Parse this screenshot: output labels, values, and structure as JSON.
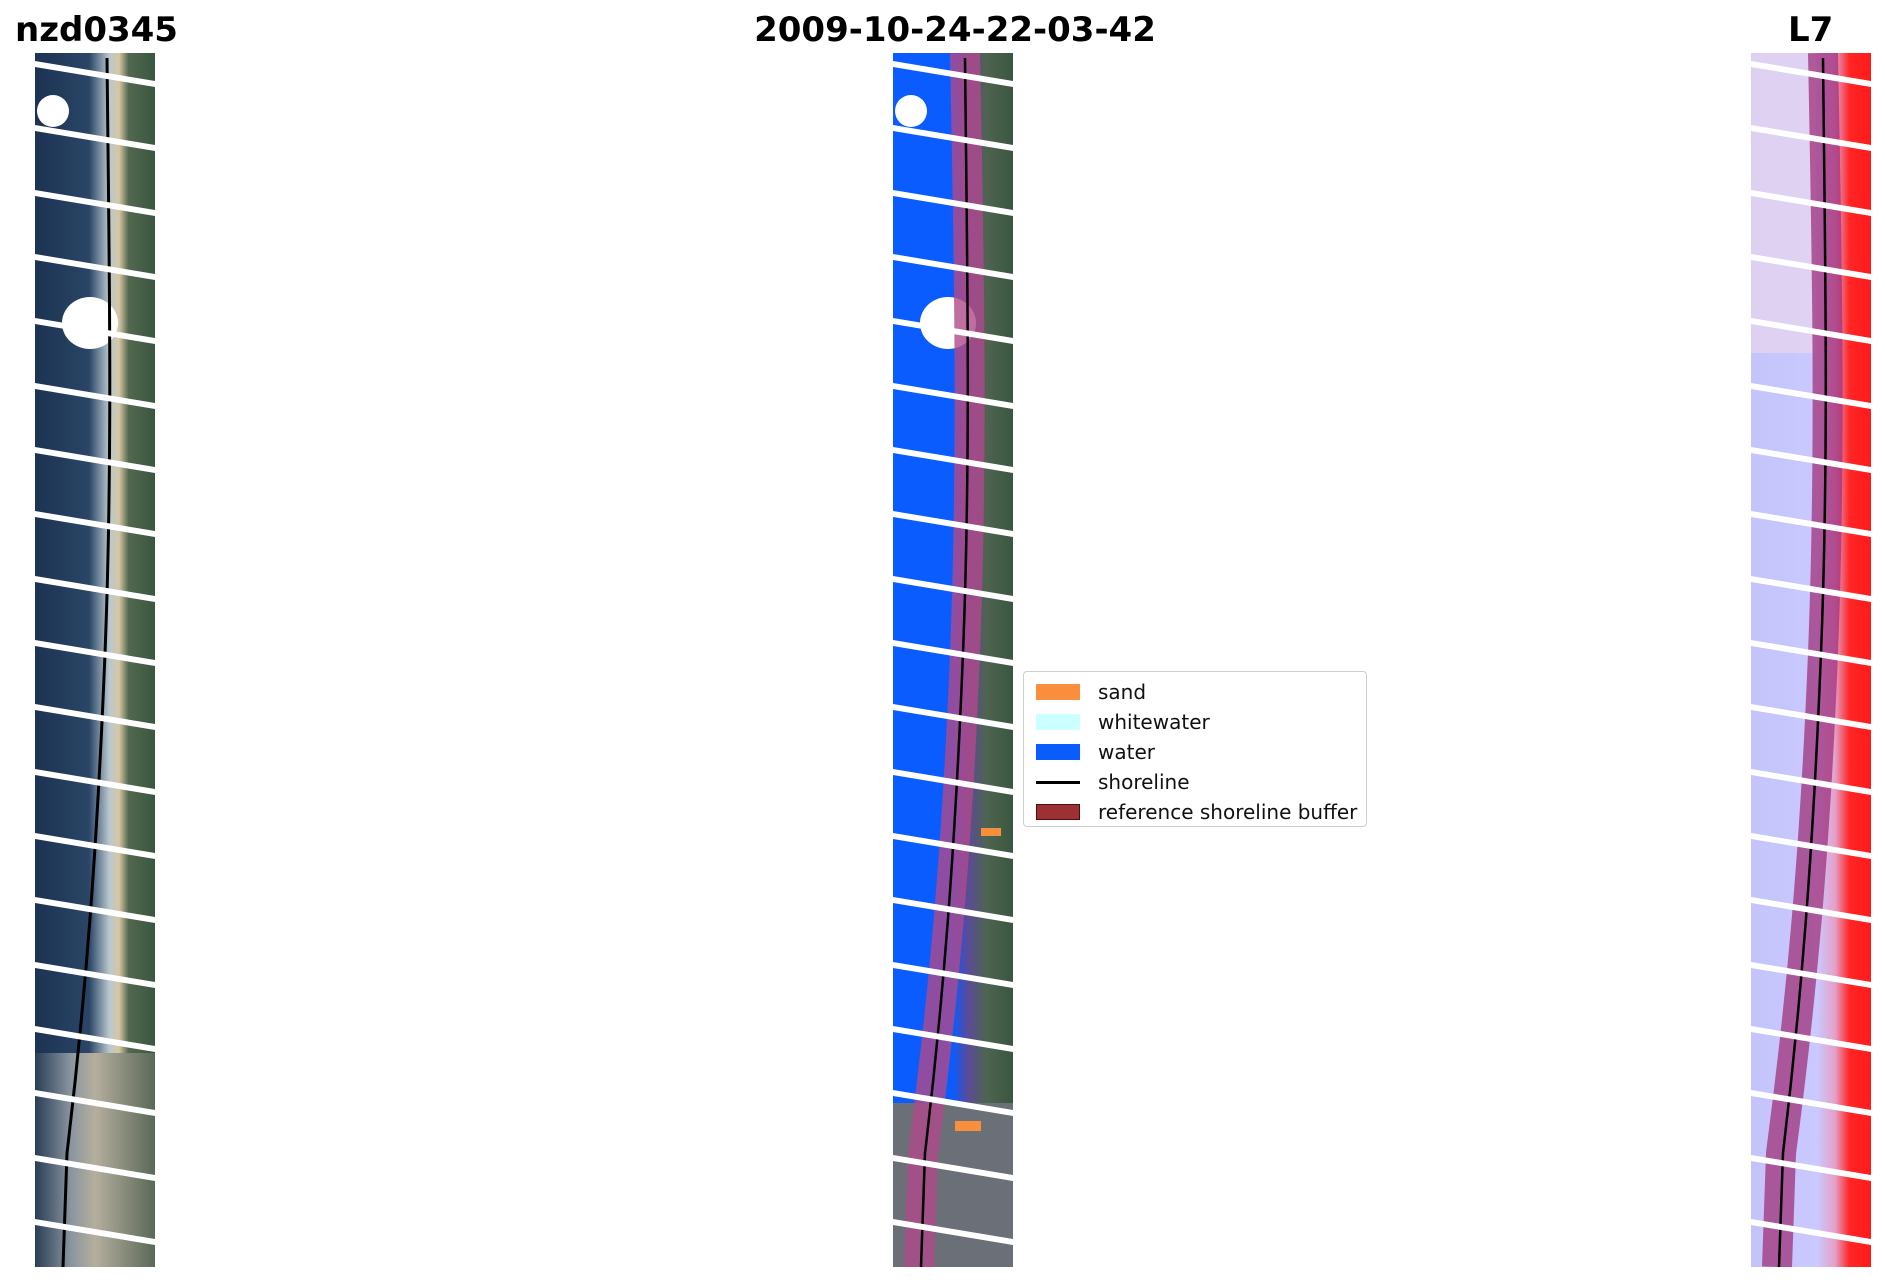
{
  "figure": {
    "title_left": "nzd0345",
    "title_center": "2009-10-24-22-03-42",
    "title_right": "L7"
  },
  "panels": [
    {
      "id": "rgb",
      "description_name": "rgb-image-panel"
    },
    {
      "id": "classified",
      "description_name": "classified-image-panel"
    },
    {
      "id": "index",
      "description_name": "index-image-panel"
    }
  ],
  "legend": {
    "items": [
      {
        "label": "sand",
        "color": "#f98e3c",
        "kind": "patch"
      },
      {
        "label": "whitewater",
        "color": "#ccffff",
        "kind": "patch"
      },
      {
        "label": "water",
        "color": "#0a5cff",
        "kind": "patch"
      },
      {
        "label": "shoreline",
        "color": "#000000",
        "kind": "line"
      },
      {
        "label": "reference shoreline buffer",
        "color": "#9c3034",
        "kind": "patch"
      }
    ]
  },
  "colors": {
    "ocean_dark": "#1e3557",
    "land_green": "#3c5a44",
    "sand_beige": "#d8c8a8",
    "cloud_white": "#ffffff",
    "buffer_overlay": "#a0307a",
    "index_land_red": "#ff2020",
    "index_water_lavender": "#c9c9ff"
  }
}
